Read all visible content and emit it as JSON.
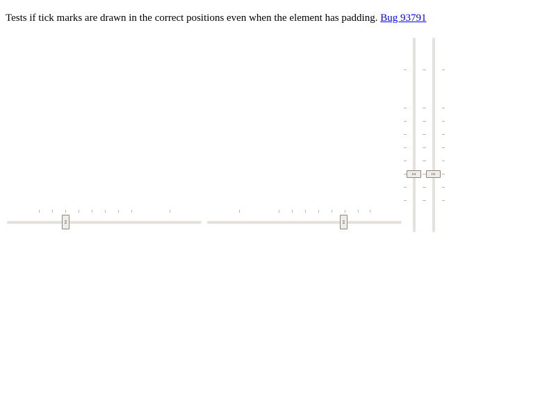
{
  "description": {
    "text": "Tests if tick marks are drawn in the correct positions even when the element has padding.",
    "link_label": "Bug 93791"
  },
  "colors": {
    "track": "#e5e1dc",
    "tick": "#b5b5b5",
    "thumb_fill": "#efebe7",
    "thumb_border": "#8a8680",
    "link": "#0000ee"
  },
  "sliders": [
    {
      "orientation": "horizontal",
      "value_fraction": 0.3,
      "tick_fractions": [
        0.164,
        0.232,
        0.3,
        0.368,
        0.436,
        0.504,
        0.571,
        0.639,
        0.836
      ]
    },
    {
      "orientation": "horizontal",
      "value_fraction": 0.7,
      "tick_fractions": [
        0.164,
        0.368,
        0.436,
        0.504,
        0.571,
        0.639,
        0.707,
        0.775,
        0.836
      ]
    },
    {
      "orientation": "vertical",
      "value_fraction": 0.3,
      "tick_fractions": [
        0.164,
        0.232,
        0.3,
        0.368,
        0.436,
        0.504,
        0.571,
        0.639,
        0.836
      ]
    },
    {
      "orientation": "vertical",
      "value_fraction": 0.3,
      "tick_fractions": [
        0.164,
        0.232,
        0.3,
        0.368,
        0.436,
        0.504,
        0.571,
        0.639,
        0.836
      ]
    }
  ]
}
